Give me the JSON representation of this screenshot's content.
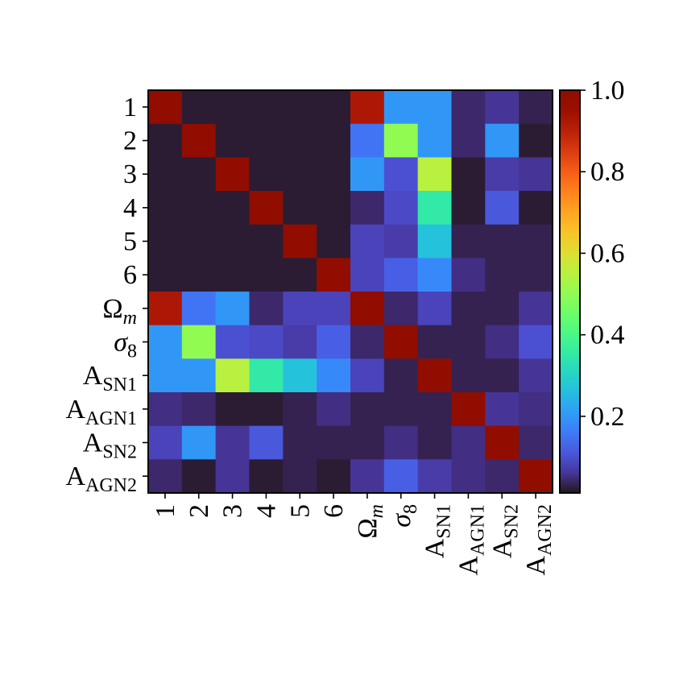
{
  "chart_data": {
    "type": "heatmap",
    "categories": [
      [
        "1"
      ],
      [
        "2"
      ],
      [
        "3"
      ],
      [
        "4"
      ],
      [
        "5"
      ],
      [
        "6"
      ],
      [
        "Ω",
        "m"
      ],
      [
        "σ",
        "8"
      ],
      [
        "A",
        "SN1"
      ],
      [
        "A",
        "AGN1"
      ],
      [
        "A",
        "SN2"
      ],
      [
        "A",
        "AGN2"
      ]
    ],
    "z": [
      [
        1,
        0.02,
        0.02,
        0.02,
        0.02,
        0.02,
        0.92,
        0.2,
        0.2,
        0.04,
        0.06,
        0.03
      ],
      [
        0.02,
        1,
        0.02,
        0.02,
        0.02,
        0.02,
        0.15,
        0.5,
        0.2,
        0.04,
        0.2,
        0.02
      ],
      [
        0.02,
        0.02,
        1,
        0.02,
        0.02,
        0.02,
        0.2,
        0.1,
        0.55,
        0.02,
        0.07,
        0.06
      ],
      [
        0.02,
        0.02,
        0.02,
        1,
        0.02,
        0.02,
        0.04,
        0.09,
        0.35,
        0.02,
        0.11,
        0.02
      ],
      [
        0.02,
        0.02,
        0.02,
        0.02,
        1,
        0.02,
        0.08,
        0.07,
        0.27,
        0.03,
        0.03,
        0.03
      ],
      [
        0.02,
        0.02,
        0.02,
        0.02,
        0.02,
        1,
        0.08,
        0.12,
        0.18,
        0.05,
        0.03,
        0.03
      ],
      [
        0.92,
        0.15,
        0.2,
        0.04,
        0.08,
        0.08,
        1,
        0.04,
        0.08,
        0.03,
        0.03,
        0.06
      ],
      [
        0.2,
        0.5,
        0.1,
        0.09,
        0.07,
        0.12,
        0.04,
        1,
        0.03,
        0.03,
        0.05,
        0.1
      ],
      [
        0.2,
        0.2,
        0.55,
        0.35,
        0.27,
        0.18,
        0.08,
        0.03,
        1,
        0.03,
        0.03,
        0.06
      ],
      [
        0.05,
        0.04,
        0.02,
        0.02,
        0.03,
        0.05,
        0.03,
        0.03,
        0.03,
        1,
        0.06,
        0.05
      ],
      [
        0.08,
        0.2,
        0.06,
        0.11,
        0.03,
        0.03,
        0.03,
        0.05,
        0.03,
        0.05,
        1,
        0.04
      ],
      [
        0.04,
        0.02,
        0.06,
        0.02,
        0.03,
        0.02,
        0.06,
        0.12,
        0.07,
        0.05,
        0.04,
        1
      ]
    ],
    "colormap": "turbo",
    "zlim": [
      0.012,
      1
    ],
    "zticks": [
      0.2,
      0.4,
      0.6,
      0.8,
      {
        "value": 1,
        "label": "1.0"
      }
    ]
  }
}
